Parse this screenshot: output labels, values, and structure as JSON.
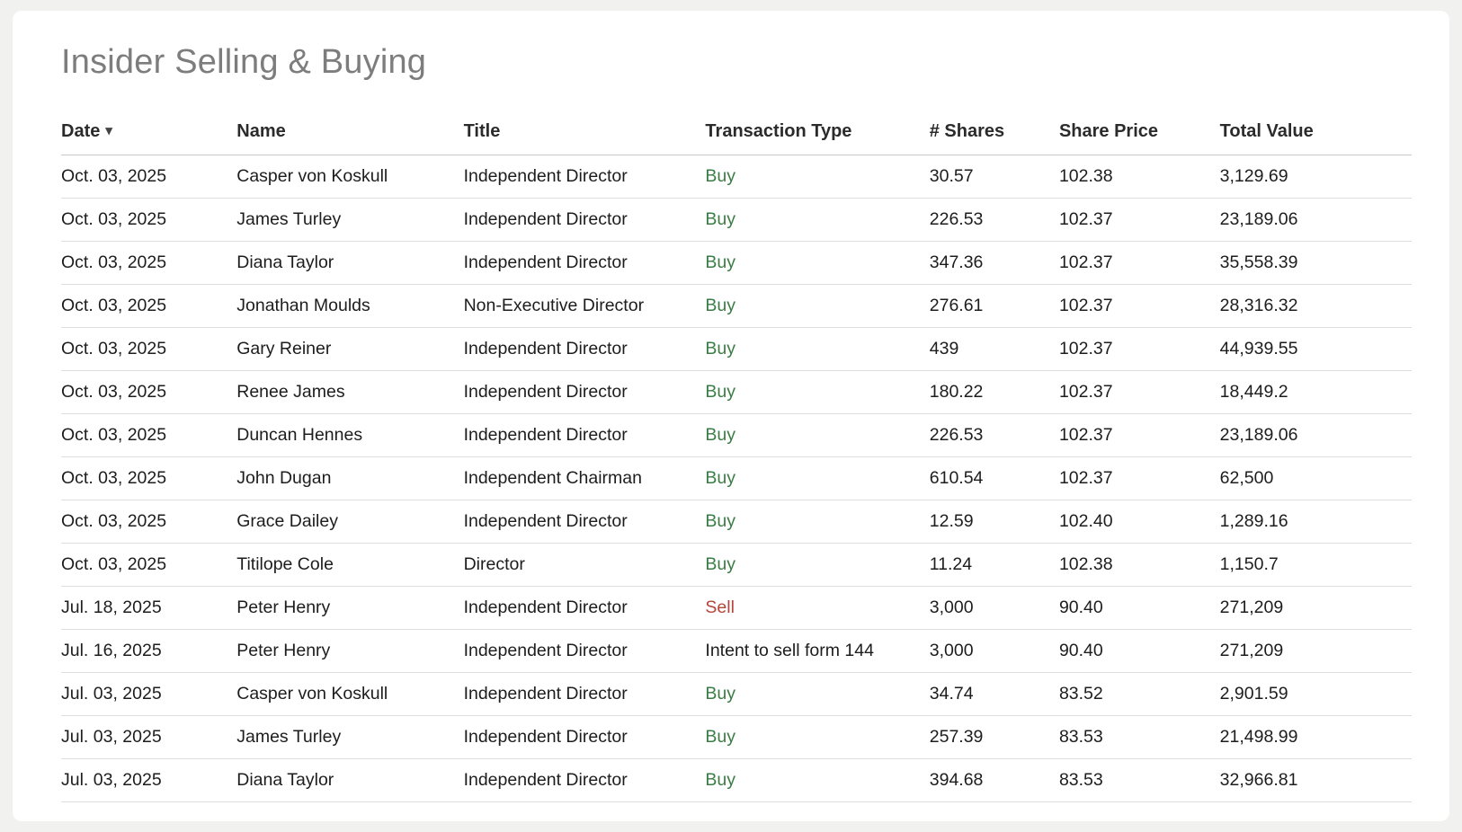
{
  "title": "Insider Selling & Buying",
  "colors": {
    "buy": "#3a7d44",
    "sell": "#b5443b",
    "neutral": "#1d1d1d",
    "title_gray": "#7d7d7d"
  },
  "table": {
    "columns": [
      {
        "key": "date",
        "label": "Date",
        "sort": "desc",
        "sort_icon": "▾"
      },
      {
        "key": "name",
        "label": "Name"
      },
      {
        "key": "title",
        "label": "Title"
      },
      {
        "key": "type",
        "label": "Transaction Type"
      },
      {
        "key": "shares",
        "label": "# Shares"
      },
      {
        "key": "price",
        "label": "Share Price"
      },
      {
        "key": "total",
        "label": "Total Value"
      }
    ],
    "rows": [
      {
        "date": "Oct. 03, 2025",
        "name": "Casper von Koskull",
        "title": "Independent Director",
        "type": "Buy",
        "type_kind": "buy",
        "shares": "30.57",
        "price": "102.38",
        "total": "3,129.69"
      },
      {
        "date": "Oct. 03, 2025",
        "name": "James Turley",
        "title": "Independent Director",
        "type": "Buy",
        "type_kind": "buy",
        "shares": "226.53",
        "price": "102.37",
        "total": "23,189.06"
      },
      {
        "date": "Oct. 03, 2025",
        "name": "Diana Taylor",
        "title": "Independent Director",
        "type": "Buy",
        "type_kind": "buy",
        "shares": "347.36",
        "price": "102.37",
        "total": "35,558.39"
      },
      {
        "date": "Oct. 03, 2025",
        "name": "Jonathan Moulds",
        "title": "Non-Executive Director",
        "type": "Buy",
        "type_kind": "buy",
        "shares": "276.61",
        "price": "102.37",
        "total": "28,316.32"
      },
      {
        "date": "Oct. 03, 2025",
        "name": "Gary Reiner",
        "title": "Independent Director",
        "type": "Buy",
        "type_kind": "buy",
        "shares": "439",
        "price": "102.37",
        "total": "44,939.55"
      },
      {
        "date": "Oct. 03, 2025",
        "name": "Renee James",
        "title": "Independent Director",
        "type": "Buy",
        "type_kind": "buy",
        "shares": "180.22",
        "price": "102.37",
        "total": "18,449.2"
      },
      {
        "date": "Oct. 03, 2025",
        "name": "Duncan Hennes",
        "title": "Independent Director",
        "type": "Buy",
        "type_kind": "buy",
        "shares": "226.53",
        "price": "102.37",
        "total": "23,189.06"
      },
      {
        "date": "Oct. 03, 2025",
        "name": "John Dugan",
        "title": "Independent Chairman",
        "type": "Buy",
        "type_kind": "buy",
        "shares": "610.54",
        "price": "102.37",
        "total": "62,500"
      },
      {
        "date": "Oct. 03, 2025",
        "name": "Grace Dailey",
        "title": "Independent Director",
        "type": "Buy",
        "type_kind": "buy",
        "shares": "12.59",
        "price": "102.40",
        "total": "1,289.16"
      },
      {
        "date": "Oct. 03, 2025",
        "name": "Titilope Cole",
        "title": "Director",
        "type": "Buy",
        "type_kind": "buy",
        "shares": "11.24",
        "price": "102.38",
        "total": "1,150.7"
      },
      {
        "date": "Jul. 18, 2025",
        "name": "Peter Henry",
        "title": "Independent Director",
        "type": "Sell",
        "type_kind": "sell",
        "shares": "3,000",
        "price": "90.40",
        "total": "271,209"
      },
      {
        "date": "Jul. 16, 2025",
        "name": "Peter Henry",
        "title": "Independent Director",
        "type": "Intent to sell form 144",
        "type_kind": "neutral",
        "shares": "3,000",
        "price": "90.40",
        "total": "271,209"
      },
      {
        "date": "Jul. 03, 2025",
        "name": "Casper von Koskull",
        "title": "Independent Director",
        "type": "Buy",
        "type_kind": "buy",
        "shares": "34.74",
        "price": "83.52",
        "total": "2,901.59"
      },
      {
        "date": "Jul. 03, 2025",
        "name": "James Turley",
        "title": "Independent Director",
        "type": "Buy",
        "type_kind": "buy",
        "shares": "257.39",
        "price": "83.53",
        "total": "21,498.99"
      },
      {
        "date": "Jul. 03, 2025",
        "name": "Diana Taylor",
        "title": "Independent Director",
        "type": "Buy",
        "type_kind": "buy",
        "shares": "394.68",
        "price": "83.53",
        "total": "32,966.81"
      }
    ]
  }
}
